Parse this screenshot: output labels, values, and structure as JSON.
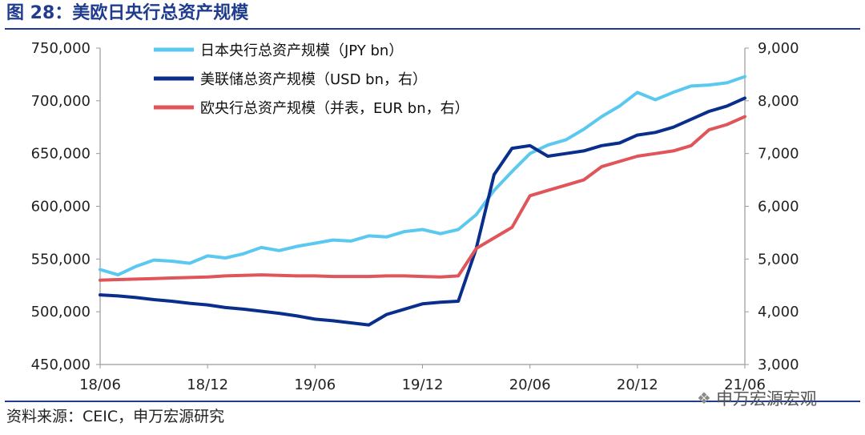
{
  "figure": {
    "title": "图 28：美欧日央行总资产规模",
    "source": "资料来源：CEIC，申万宏源研究",
    "watermark": "申万宏源宏观",
    "watermark_icon": "wechat-icon"
  },
  "chart_data": {
    "type": "line",
    "title": "",
    "x_ticks": [
      "18/06",
      "18/12",
      "19/06",
      "19/12",
      "20/06",
      "20/12",
      "21/06"
    ],
    "x_range": [
      "2018-06",
      "2021-06"
    ],
    "y_left": {
      "ticks": [
        "450,000",
        "500,000",
        "550,000",
        "600,000",
        "650,000",
        "700,000",
        "750,000"
      ],
      "range": [
        450000,
        750000
      ]
    },
    "y_right": {
      "ticks": [
        "3,000",
        "4,000",
        "5,000",
        "6,000",
        "7,000",
        "8,000",
        "9,000"
      ],
      "range": [
        3000,
        9000
      ]
    },
    "grid": false,
    "legend_position": "top-left",
    "series": [
      {
        "name": "日本央行总资产规模（JPY bn）",
        "axis": "left",
        "color": "#5bc8f0",
        "points": [
          [
            "2018-06",
            540000
          ],
          [
            "2018-07",
            535000
          ],
          [
            "2018-08",
            543000
          ],
          [
            "2018-09",
            549000
          ],
          [
            "2018-10",
            548000
          ],
          [
            "2018-11",
            546000
          ],
          [
            "2018-12",
            553000
          ],
          [
            "2019-01",
            551000
          ],
          [
            "2019-02",
            555000
          ],
          [
            "2019-03",
            561000
          ],
          [
            "2019-04",
            558000
          ],
          [
            "2019-05",
            562000
          ],
          [
            "2019-06",
            565000
          ],
          [
            "2019-07",
            568000
          ],
          [
            "2019-08",
            567000
          ],
          [
            "2019-09",
            572000
          ],
          [
            "2019-10",
            571000
          ],
          [
            "2019-11",
            576000
          ],
          [
            "2019-12",
            578000
          ],
          [
            "2020-01",
            574000
          ],
          [
            "2020-02",
            578000
          ],
          [
            "2020-03",
            592000
          ],
          [
            "2020-04",
            615000
          ],
          [
            "2020-05",
            633000
          ],
          [
            "2020-06",
            650000
          ],
          [
            "2020-07",
            658000
          ],
          [
            "2020-08",
            663000
          ],
          [
            "2020-09",
            673000
          ],
          [
            "2020-10",
            685000
          ],
          [
            "2020-11",
            695000
          ],
          [
            "2020-12",
            708000
          ],
          [
            "2021-01",
            701000
          ],
          [
            "2021-02",
            708000
          ],
          [
            "2021-03",
            714000
          ],
          [
            "2021-04",
            715000
          ],
          [
            "2021-05",
            717000
          ],
          [
            "2021-06",
            723000
          ]
        ]
      },
      {
        "name": "美联储总资产规模（USD bn，右）",
        "axis": "right",
        "color": "#0a2e8c",
        "points": [
          [
            "2018-06",
            4320
          ],
          [
            "2018-07",
            4300
          ],
          [
            "2018-08",
            4270
          ],
          [
            "2018-09",
            4230
          ],
          [
            "2018-10",
            4200
          ],
          [
            "2018-11",
            4160
          ],
          [
            "2018-12",
            4130
          ],
          [
            "2019-01",
            4080
          ],
          [
            "2019-02",
            4050
          ],
          [
            "2019-03",
            4010
          ],
          [
            "2019-04",
            3970
          ],
          [
            "2019-05",
            3920
          ],
          [
            "2019-06",
            3860
          ],
          [
            "2019-07",
            3830
          ],
          [
            "2019-08",
            3790
          ],
          [
            "2019-09",
            3750
          ],
          [
            "2019-10",
            3950
          ],
          [
            "2019-11",
            4050
          ],
          [
            "2019-12",
            4150
          ],
          [
            "2020-01",
            4180
          ],
          [
            "2020-02",
            4200
          ],
          [
            "2020-03",
            5200
          ],
          [
            "2020-04",
            6600
          ],
          [
            "2020-05",
            7100
          ],
          [
            "2020-06",
            7150
          ],
          [
            "2020-07",
            6950
          ],
          [
            "2020-08",
            7000
          ],
          [
            "2020-09",
            7050
          ],
          [
            "2020-10",
            7150
          ],
          [
            "2020-11",
            7200
          ],
          [
            "2020-12",
            7350
          ],
          [
            "2021-01",
            7400
          ],
          [
            "2021-02",
            7500
          ],
          [
            "2021-03",
            7650
          ],
          [
            "2021-04",
            7800
          ],
          [
            "2021-05",
            7900
          ],
          [
            "2021-06",
            8050
          ]
        ]
      },
      {
        "name": "欧央行总资产规模（并表，EUR bn，右）",
        "axis": "right",
        "color": "#e0555a",
        "points": [
          [
            "2018-06",
            4600
          ],
          [
            "2018-07",
            4610
          ],
          [
            "2018-08",
            4620
          ],
          [
            "2018-09",
            4630
          ],
          [
            "2018-10",
            4640
          ],
          [
            "2018-11",
            4650
          ],
          [
            "2018-12",
            4660
          ],
          [
            "2019-01",
            4680
          ],
          [
            "2019-02",
            4690
          ],
          [
            "2019-03",
            4700
          ],
          [
            "2019-04",
            4690
          ],
          [
            "2019-05",
            4680
          ],
          [
            "2019-06",
            4680
          ],
          [
            "2019-07",
            4670
          ],
          [
            "2019-08",
            4670
          ],
          [
            "2019-09",
            4670
          ],
          [
            "2019-10",
            4680
          ],
          [
            "2019-11",
            4680
          ],
          [
            "2019-12",
            4670
          ],
          [
            "2020-01",
            4660
          ],
          [
            "2020-02",
            4680
          ],
          [
            "2020-03",
            5200
          ],
          [
            "2020-04",
            5400
          ],
          [
            "2020-05",
            5600
          ],
          [
            "2020-06",
            6200
          ],
          [
            "2020-07",
            6300
          ],
          [
            "2020-08",
            6400
          ],
          [
            "2020-09",
            6500
          ],
          [
            "2020-10",
            6750
          ],
          [
            "2020-11",
            6850
          ],
          [
            "2020-12",
            6950
          ],
          [
            "2021-01",
            7000
          ],
          [
            "2021-02",
            7050
          ],
          [
            "2021-03",
            7150
          ],
          [
            "2021-04",
            7450
          ],
          [
            "2021-05",
            7550
          ],
          [
            "2021-06",
            7700
          ]
        ]
      }
    ]
  }
}
